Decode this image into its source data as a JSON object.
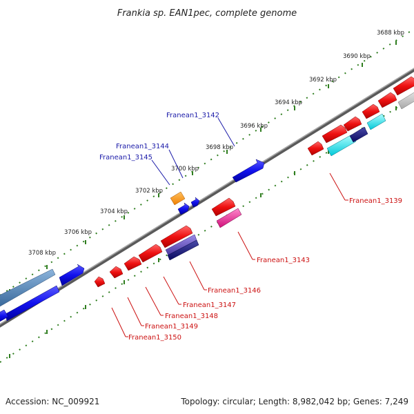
{
  "title": "Frankia sp. EAN1pec, complete genome",
  "footer": {
    "accession": "Accession: NC_009921",
    "summary": "Topology: circular; Length: 8,982,042 bp; Genes: 7,249"
  },
  "ticks": [
    {
      "label": "3688 kbp"
    },
    {
      "label": "3690 kbp"
    },
    {
      "label": "3692 kbp"
    },
    {
      "label": "3694 kbp"
    },
    {
      "label": "3696 kbp"
    },
    {
      "label": "3698 kbp"
    },
    {
      "label": "3700 kbp"
    },
    {
      "label": "3702 kbp"
    },
    {
      "label": "3704 kbp"
    },
    {
      "label": "3706 kbp"
    },
    {
      "label": "3708 kbp"
    }
  ],
  "gene_labels": [
    {
      "name": "Franean1_3142",
      "strand": "plus"
    },
    {
      "name": "Franean1_3144",
      "strand": "plus"
    },
    {
      "name": "Franean1_3145",
      "strand": "plus"
    },
    {
      "name": "Franean1_3139",
      "strand": "minus"
    },
    {
      "name": "Franean1_3143",
      "strand": "minus"
    },
    {
      "name": "Franean1_3146",
      "strand": "minus"
    },
    {
      "name": "Franean1_3147",
      "strand": "minus"
    },
    {
      "name": "Franean1_3148",
      "strand": "minus"
    },
    {
      "name": "Franean1_3149",
      "strand": "minus"
    },
    {
      "name": "Franean1_3150",
      "strand": "minus"
    }
  ],
  "colors": {
    "backbone": "#808080",
    "tick_mark": "#2e7d1e",
    "plus_label": "#1a1aa8",
    "minus_label": "#cc1111"
  }
}
